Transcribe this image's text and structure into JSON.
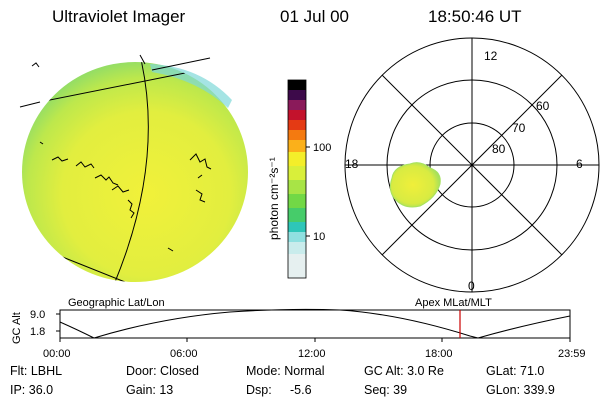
{
  "header": {
    "title": "Ultraviolet Imager",
    "date": "01 Jul 00",
    "time": "18:50:46 UT"
  },
  "colorbar": {
    "unit_label": "photon cm⁻²s⁻¹",
    "ticks": [
      "100",
      "10"
    ]
  },
  "polar_plot": {
    "clock_labels": {
      "top": "12",
      "left": "18",
      "right": "6",
      "bottom": "0"
    },
    "lat_labels": [
      "60",
      "70",
      "80"
    ]
  },
  "bottom_plot": {
    "left_title": "Geographic Lat/Lon",
    "right_title": "Apex MLat/MLT",
    "ylabel": "GC Alt",
    "y_ticks": [
      "9.0",
      "1.8"
    ],
    "x_ticks": [
      "00:00",
      "06:00",
      "12:00",
      "18:00",
      "23:59"
    ]
  },
  "info": {
    "row1": {
      "filter": "Flt: LBHL",
      "door": "Door: Closed",
      "mode": "Mode: Normal",
      "gc_alt": "GC Alt: 3.0 Re",
      "glat": "GLat: 71.0"
    },
    "row2": {
      "ip": "IP: 36.0",
      "gain": "Gain: 13",
      "dsp_label": "Dsp:",
      "dsp_value": "-5.6",
      "seq": "Seq: 39",
      "glon": "GLon: 339.9"
    }
  },
  "colors": {
    "disk_fill": "#e4ee3c",
    "disk_edge": "#9ee05a",
    "orbit_marker": "#cc0000"
  }
}
